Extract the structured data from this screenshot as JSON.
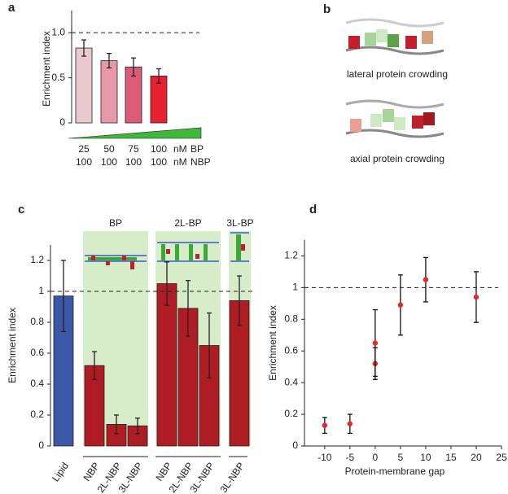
{
  "chart_data": [
    {
      "type": "bar",
      "label": "a",
      "y_label": "Enrichment index",
      "values": [
        0.83,
        0.69,
        0.62,
        0.52
      ],
      "errors": [
        0.09,
        0.08,
        0.1,
        0.08
      ],
      "colors": [
        "#e9c9cd",
        "#e899a8",
        "#dc5b79",
        "#e8212f"
      ],
      "ylim": [
        0,
        1.2
      ],
      "yticks": [
        0,
        0.5,
        {
          "value": 1,
          "label": "1.0"
        }
      ],
      "reference_line": 1,
      "rows": [
        {
          "values": [
            "25",
            "50",
            "75",
            "100"
          ],
          "unit": "nM",
          "name": "BP",
          "color": "#3aa936"
        },
        {
          "values": [
            "100",
            "100",
            "100",
            "100"
          ],
          "unit": "nM",
          "name": "NBP",
          "color": "#e8212f"
        }
      ]
    },
    {
      "type": "bar",
      "label": "c",
      "y_label": "Enrichment index",
      "categories": [
        "Lipid",
        "NBP",
        "2L-NBP",
        "3L-NBP",
        "NBP",
        "2L-NBP",
        "3L-NBP",
        "3L-NBP"
      ],
      "category_colors": [
        "#222222",
        "#e8212f",
        "#e8212f",
        "#e8212f",
        "#e8212f",
        "#e8212f",
        "#e8212f",
        "#e8212f"
      ],
      "values": [
        0.97,
        0.52,
        0.14,
        0.13,
        1.05,
        0.89,
        0.65,
        0.94
      ],
      "errors": [
        0.23,
        0.09,
        0.06,
        0.05,
        0.14,
        0.18,
        0.21,
        0.16
      ],
      "colors": [
        "#3a57a8",
        "#b01c24",
        "#b01c24",
        "#b01c24",
        "#b01c24",
        "#b01c24",
        "#b01c24",
        "#b01c24"
      ],
      "groups": [
        "BP",
        "2L-BP",
        "3L-BP"
      ],
      "group_color": "#2f8a3a",
      "ylim": [
        0,
        1.3
      ],
      "yticks": [
        0,
        0.2,
        0.4,
        0.6,
        0.8,
        1,
        1.2
      ],
      "reference_line": 1
    },
    {
      "type": "scatter",
      "label": "d",
      "y_label": "Enrichment index",
      "x_label": "Protein-membrane gap",
      "x": [
        -10,
        -5,
        0,
        0,
        5,
        10,
        20
      ],
      "values": [
        0.13,
        0.14,
        0.52,
        0.65,
        0.89,
        1.05,
        0.94
      ],
      "errors": [
        0.05,
        0.06,
        0.1,
        0.21,
        0.19,
        0.14,
        0.16
      ],
      "color": "#e8272a",
      "xlim": [
        -14,
        25
      ],
      "xticks": [
        -10,
        -5,
        0,
        5,
        10,
        15,
        20,
        25
      ],
      "ylim": [
        0,
        1.3
      ],
      "yticks": [
        0,
        0.2,
        0.4,
        0.6,
        0.8,
        1,
        1.2
      ],
      "reference_line": 1
    }
  ],
  "diagram": {
    "label": "b",
    "captions": [
      "lateral protein crowding",
      "axial protein crowding"
    ]
  }
}
